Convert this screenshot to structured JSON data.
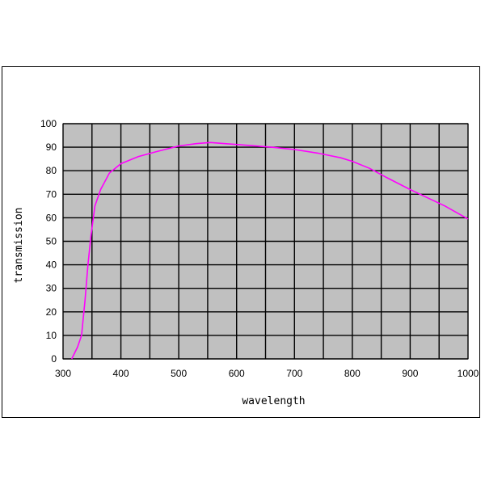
{
  "chart_data": {
    "type": "line",
    "title": "",
    "xlabel": "wavelength",
    "ylabel": "transmission",
    "xlim": [
      300,
      1000
    ],
    "ylim": [
      0,
      100
    ],
    "x_ticks": [
      300,
      400,
      500,
      600,
      700,
      800,
      900,
      1000
    ],
    "y_ticks": [
      0,
      10,
      20,
      30,
      40,
      50,
      60,
      70,
      80,
      90,
      100
    ],
    "x_grid_step": 50,
    "y_grid_step": 10,
    "grid": true,
    "legend": "none",
    "colors": {
      "plot_background": "#c0c0c0",
      "line": "#ff00ff",
      "grid": "#000000"
    },
    "series": [
      {
        "color": "#ff00ff",
        "points": [
          [
            315,
            0
          ],
          [
            325,
            5
          ],
          [
            332,
            10
          ],
          [
            338,
            25
          ],
          [
            343,
            40
          ],
          [
            348,
            52
          ],
          [
            355,
            65
          ],
          [
            365,
            72
          ],
          [
            380,
            79
          ],
          [
            400,
            83
          ],
          [
            430,
            86
          ],
          [
            460,
            88
          ],
          [
            500,
            90.5
          ],
          [
            530,
            91.5
          ],
          [
            555,
            92
          ],
          [
            580,
            91.5
          ],
          [
            620,
            90.8
          ],
          [
            660,
            90
          ],
          [
            700,
            89
          ],
          [
            740,
            87.5
          ],
          [
            780,
            85.5
          ],
          [
            800,
            84
          ],
          [
            830,
            81
          ],
          [
            860,
            77
          ],
          [
            900,
            72
          ],
          [
            930,
            68.5
          ],
          [
            960,
            65
          ],
          [
            1000,
            59.5
          ]
        ]
      }
    ]
  }
}
